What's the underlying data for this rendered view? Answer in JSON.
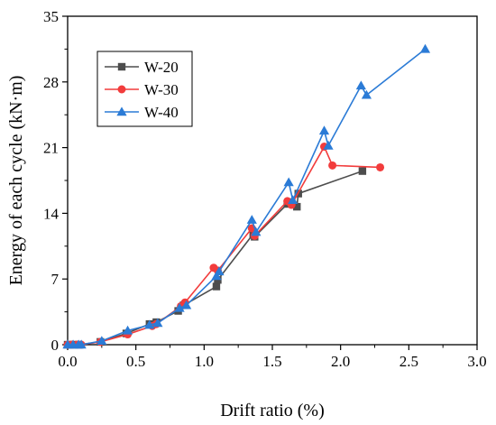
{
  "chart_data": {
    "type": "line",
    "xlabel": "Drift ratio (%)",
    "ylabel": "Energy of each cycle (kN·m)",
    "xlim": [
      0,
      3.0
    ],
    "ylim": [
      0,
      35
    ],
    "xticks": [
      "0.0",
      "0.5",
      "1.0",
      "1.5",
      "2.0",
      "2.5",
      "3.0"
    ],
    "yticks": [
      "0",
      "7",
      "14",
      "21",
      "28",
      "35"
    ],
    "grid": false,
    "legend_position": "top-left",
    "series": [
      {
        "name": "W-20",
        "color": "#4d4d4d",
        "marker": "square",
        "points": [
          [
            0.0,
            0.0
          ],
          [
            0.02,
            0.0
          ],
          [
            0.05,
            0.0
          ],
          [
            0.08,
            0.0
          ],
          [
            0.24,
            0.3
          ],
          [
            0.43,
            1.2
          ],
          [
            0.6,
            2.2
          ],
          [
            0.65,
            2.4
          ],
          [
            0.81,
            3.6
          ],
          [
            0.85,
            4.2
          ],
          [
            1.09,
            6.2
          ],
          [
            1.1,
            6.9
          ],
          [
            1.36,
            11.8
          ],
          [
            1.37,
            11.5
          ],
          [
            1.61,
            15.0
          ],
          [
            1.64,
            15.2
          ],
          [
            1.68,
            14.7
          ],
          [
            1.69,
            16.1
          ],
          [
            2.16,
            18.5
          ]
        ]
      },
      {
        "name": "W-30",
        "color": "#f23c3c",
        "marker": "circle",
        "points": [
          [
            0.0,
            0.0
          ],
          [
            0.03,
            0.0
          ],
          [
            0.07,
            0.0
          ],
          [
            0.1,
            0.0
          ],
          [
            0.24,
            0.3
          ],
          [
            0.44,
            1.1
          ],
          [
            0.62,
            2.0
          ],
          [
            0.65,
            2.2
          ],
          [
            0.83,
            4.1
          ],
          [
            0.86,
            4.5
          ],
          [
            1.07,
            8.2
          ],
          [
            1.1,
            7.9
          ],
          [
            1.35,
            12.4
          ],
          [
            1.37,
            11.6
          ],
          [
            1.61,
            15.3
          ],
          [
            1.64,
            14.9
          ],
          [
            1.88,
            21.1
          ],
          [
            1.94,
            19.1
          ],
          [
            2.29,
            18.9
          ]
        ]
      },
      {
        "name": "W-40",
        "color": "#2b7bd6",
        "marker": "triangle",
        "points": [
          [
            0.0,
            0.0
          ],
          [
            0.04,
            0.0
          ],
          [
            0.08,
            0.0
          ],
          [
            0.1,
            0.0
          ],
          [
            0.25,
            0.4
          ],
          [
            0.44,
            1.5
          ],
          [
            0.6,
            2.1
          ],
          [
            0.66,
            2.3
          ],
          [
            0.82,
            3.9
          ],
          [
            0.87,
            4.2
          ],
          [
            1.09,
            7.3
          ],
          [
            1.11,
            7.8
          ],
          [
            1.35,
            13.3
          ],
          [
            1.38,
            12.0
          ],
          [
            1.62,
            17.3
          ],
          [
            1.65,
            15.4
          ],
          [
            1.88,
            22.8
          ],
          [
            1.91,
            21.2
          ],
          [
            2.15,
            27.6
          ],
          [
            2.19,
            26.6
          ],
          [
            2.62,
            31.5
          ]
        ]
      }
    ]
  }
}
